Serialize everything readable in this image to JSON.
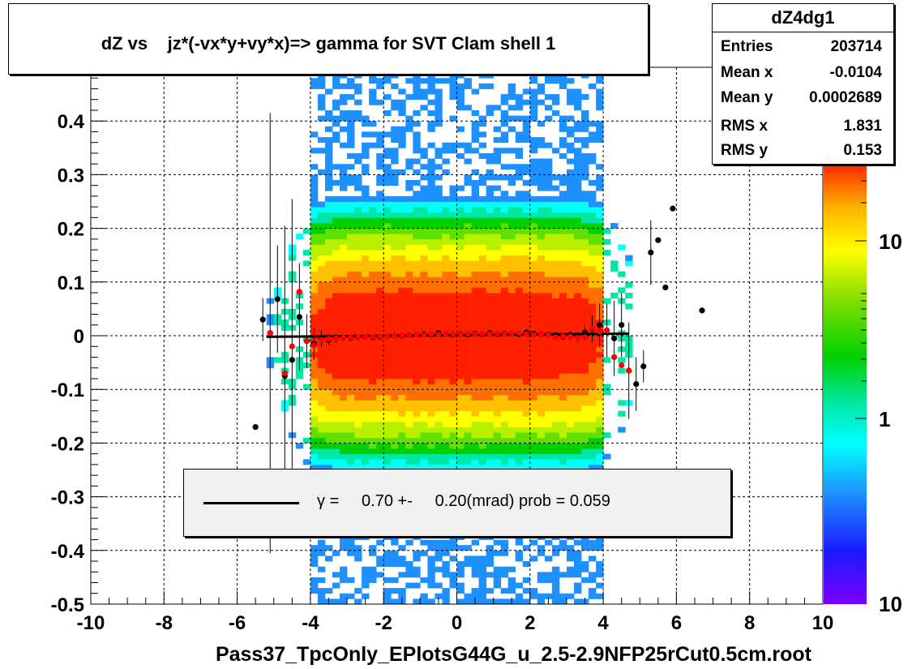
{
  "chart_data": {
    "type": "heatmap",
    "title": "dZ vs    jz*(-vx*y+vy*x)=> gamma for SVT Clam shell 1",
    "xlabel": "Pass37_TpcOnly_EPlotsG44G_u_2.5-2.9NFP25rCut0.5cm.root",
    "ylabel": "",
    "xlim": [
      -10,
      10
    ],
    "ylim": [
      -0.5,
      0.5
    ],
    "x_ticks": [
      "-10",
      "-8",
      "-6",
      "-4",
      "-2",
      "0",
      "2",
      "4",
      "6",
      "8",
      "10"
    ],
    "y_ticks": [
      "-0.5",
      "-0.4",
      "-0.3",
      "-0.2",
      "-0.1",
      "0",
      "0.1",
      "0.2",
      "0.3",
      "0.4"
    ],
    "grid": true,
    "colorbar": {
      "scale": "log",
      "labels": [
        "1",
        "10",
        "10"
      ]
    },
    "black_profile": {
      "x": [
        -5.5,
        -5.3,
        -5.1,
        -4.9,
        -4.7,
        -4.5,
        -4.3,
        -4.1,
        -3.9,
        -3.7,
        -3.5,
        -3.3,
        -3.1,
        -2.9,
        -2.7,
        -2.5,
        -2.3,
        -2.1,
        -1.9,
        -1.7,
        -1.5,
        -1.3,
        -1.1,
        -0.9,
        -0.7,
        -0.5,
        -0.3,
        -0.1,
        0.1,
        0.3,
        0.5,
        0.7,
        0.9,
        1.1,
        1.3,
        1.5,
        1.7,
        1.9,
        2.1,
        2.3,
        2.5,
        2.7,
        2.9,
        3.1,
        3.3,
        3.5,
        3.7,
        3.9,
        4.1,
        4.3,
        4.5,
        4.7,
        4.9,
        5.1,
        5.3,
        5.5,
        5.7,
        5.9,
        6.7
      ],
      "y": [
        -0.17,
        0.03,
        0.005,
        0.068,
        -0.075,
        -0.045,
        0.035,
        -0.01,
        -0.015,
        -0.005,
        -0.008,
        -0.005,
        -0.004,
        -0.004,
        -0.003,
        -0.002,
        -0.003,
        -0.002,
        -0.001,
        0.0,
        0.0,
        0.001,
        0.002,
        0.003,
        0.002,
        0.005,
        0.003,
        0.002,
        0.003,
        0.002,
        0.004,
        0.003,
        0.005,
        0.003,
        0.004,
        0.004,
        0.003,
        0.006,
        0.004,
        0.003,
        0.002,
        0.001,
        -0.002,
        0.001,
        -0.003,
        0.006,
        0.013,
        0.02,
        0.01,
        -0.005,
        0.02,
        -0.065,
        -0.09,
        -0.057,
        0.155,
        0.178,
        0.09,
        0.237,
        0.047
      ],
      "err": [
        0,
        0.04,
        0.41,
        0.1,
        0.28,
        0.3,
        0.1,
        0.05,
        0.03,
        0.015,
        0.01,
        0.008,
        0.006,
        0.005,
        0.004,
        0.003,
        0.003,
        0.003,
        0.002,
        0.002,
        0.002,
        0.002,
        0.002,
        0.002,
        0.002,
        0.002,
        0.002,
        0.002,
        0.002,
        0.002,
        0.002,
        0.002,
        0.002,
        0.002,
        0.002,
        0.003,
        0.003,
        0.003,
        0.003,
        0.004,
        0.004,
        0.005,
        0.006,
        0.008,
        0.01,
        0.015,
        0.025,
        0.04,
        0.05,
        0.07,
        0.06,
        0.09,
        0.05,
        0.03,
        0.06,
        0,
        0,
        0,
        0
      ]
    },
    "red_profile": {
      "x": [
        -5.1,
        -4.7,
        -4.5,
        -4.3,
        -4.1,
        -3.9,
        -3.7,
        -3.5,
        -3.3,
        -3.1,
        -2.9,
        -2.7,
        -2.5,
        -2.3,
        -2.1,
        -1.9,
        -1.7,
        -1.5,
        -1.3,
        -1.1,
        -0.9,
        -0.7,
        -0.5,
        -0.3,
        -0.1,
        0.1,
        0.3,
        0.5,
        0.7,
        0.9,
        1.1,
        1.3,
        1.5,
        1.7,
        1.9,
        2.1,
        2.3,
        2.5,
        2.7,
        2.9,
        3.1,
        3.3,
        3.5,
        3.7,
        3.9,
        4.1,
        4.3,
        4.5,
        4.7
      ],
      "y": [
        0.005,
        -0.07,
        -0.02,
        0.082,
        -0.01,
        -0.018,
        -0.008,
        -0.006,
        -0.005,
        -0.004,
        -0.003,
        -0.003,
        -0.002,
        -0.002,
        -0.001,
        -0.001,
        0.0,
        0.001,
        0.001,
        0.002,
        0.002,
        0.003,
        0.002,
        0.003,
        0.003,
        0.002,
        0.004,
        0.003,
        0.004,
        0.003,
        0.004,
        0.003,
        0.004,
        0.005,
        0.003,
        0.002,
        0.003,
        0.001,
        -0.003,
        -0.001,
        -0.002,
        -0.004,
        -0.003,
        0.014,
        0.008,
        0.01,
        -0.04,
        -0.055,
        -0.065
      ]
    },
    "fit_line": {
      "x": [
        -5.2,
        4.7
      ],
      "y": [
        -0.002,
        0.004
      ]
    },
    "legend": {
      "symbol": "γ",
      "text": "=     0.70 +-     0.20(mrad) prob = 0.059"
    },
    "stats": {
      "name": "dZ4dg1",
      "rows": [
        {
          "label": "Entries",
          "value": "203714"
        },
        {
          "label": "Mean x",
          "value": "-0.0104"
        },
        {
          "label": "Mean y",
          "value": "0.0002689"
        },
        {
          "label": "RMS x",
          "value": "1.831"
        },
        {
          "label": "RMS y",
          "value": "0.153"
        }
      ]
    }
  }
}
